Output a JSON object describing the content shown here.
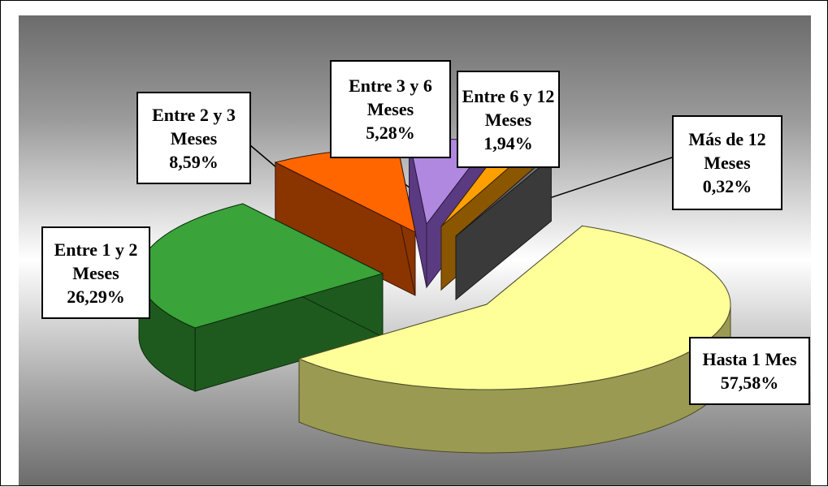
{
  "chart_data": {
    "type": "pie",
    "style": "3d-exploded",
    "slices": [
      {
        "name": "Hasta 1 Mes",
        "label_lines": [
          "Hasta 1 Mes"
        ],
        "value_text": "57,58%",
        "value": 57.58,
        "color": "#ffff99",
        "side": "#9a9a52",
        "outline": "#4a4a2a"
      },
      {
        "name": "Entre 1 y 2 Meses",
        "label_lines": [
          "Entre 1 y 2",
          "Meses"
        ],
        "value_text": "26,29%",
        "value": 26.29,
        "color": "#3aa33a",
        "side": "#1e5a1e",
        "outline": "#0a2a0a"
      },
      {
        "name": "Entre 2 y 3 Meses",
        "label_lines": [
          "Entre 2 y 3",
          "Meses"
        ],
        "value_text": "8,59%",
        "value": 8.59,
        "color": "#ff6600",
        "side": "#8a3400",
        "outline": "#3a1400"
      },
      {
        "name": "Entre 3 y 6 Meses",
        "label_lines": [
          "Entre 3 y 6",
          "Meses"
        ],
        "value_text": "5,28%",
        "value": 5.28,
        "color": "#b088e0",
        "side": "#5a3a80",
        "outline": "#2a1a40"
      },
      {
        "name": "Entre 6 y 12 Meses",
        "label_lines": [
          "Entre 6 y 12",
          "Meses"
        ],
        "value_text": "1,94%",
        "value": 1.94,
        "color": "#ffa000",
        "side": "#8a5600",
        "outline": "#3a2400"
      },
      {
        "name": "Más de 12 Meses",
        "label_lines": [
          "Más de 12",
          "Meses"
        ],
        "value_text": "0,32%",
        "value": 0.32,
        "color": "#707070",
        "side": "#3a3a3a",
        "outline": "#1a1a1a"
      }
    ]
  }
}
